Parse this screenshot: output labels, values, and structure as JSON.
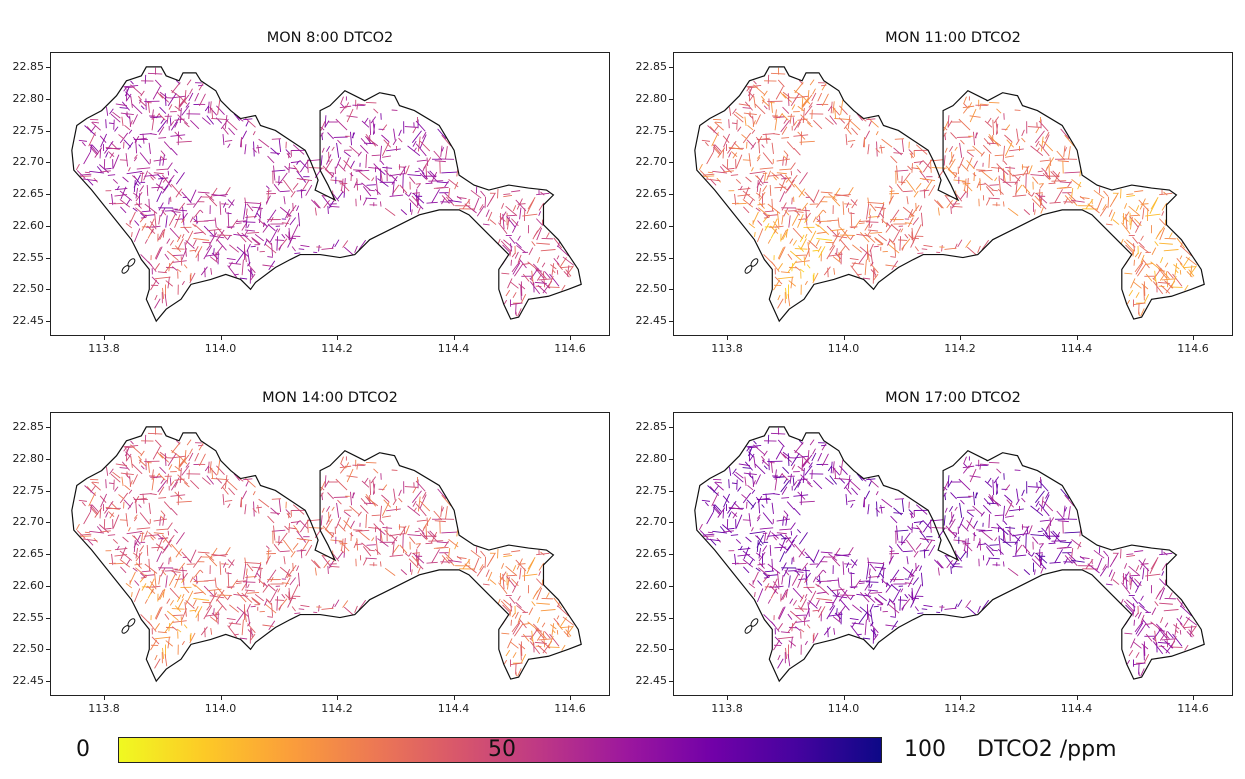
{
  "chart_data": {
    "type": "map",
    "xlim": [
      113.71,
      114.67
    ],
    "ylim": [
      22.43,
      22.874
    ],
    "x_ticks": [
      "113.8",
      "114.0",
      "114.2",
      "114.4",
      "114.6"
    ],
    "y_ticks": [
      "22.85",
      "22.80",
      "22.75",
      "22.70",
      "22.65",
      "22.60",
      "22.55",
      "22.50",
      "22.45"
    ],
    "panels": [
      {
        "title": "MON 8:00 DTCO2",
        "typical_value": 62
      },
      {
        "title": "MON 11:00 DTCO2",
        "typical_value": 38
      },
      {
        "title": "MON 14:00 DTCO2",
        "typical_value": 45
      },
      {
        "title": "MON 17:00 DTCO2",
        "typical_value": 72
      }
    ],
    "colorbar": {
      "colormap": "plasma_r",
      "min_label": "0",
      "mid_label": "50",
      "max_label": "100",
      "range": [
        0,
        100
      ],
      "unit_label": "DTCO2 /ppm"
    }
  }
}
